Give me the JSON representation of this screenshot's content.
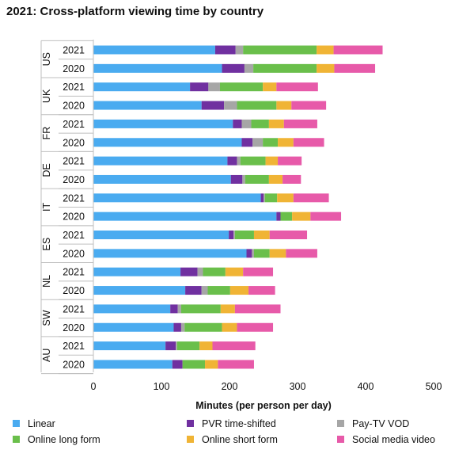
{
  "title": "2021: Cross-platform viewing time by country",
  "chart_data": {
    "type": "bar",
    "orientation": "horizontal",
    "stacked": true,
    "xlabel": "Minutes (per person per day)",
    "xlim": [
      0,
      500
    ],
    "xticks": [
      0,
      100,
      200,
      300,
      400,
      500
    ],
    "grid": false,
    "legend_position": "bottom",
    "groups": [
      {
        "country": "US",
        "years": [
          "2021",
          "2020"
        ]
      },
      {
        "country": "UK",
        "years": [
          "2021",
          "2020"
        ]
      },
      {
        "country": "FR",
        "years": [
          "2021",
          "2020"
        ]
      },
      {
        "country": "DE",
        "years": [
          "2021",
          "2020"
        ]
      },
      {
        "country": "IT",
        "years": [
          "2021",
          "2020"
        ]
      },
      {
        "country": "ES",
        "years": [
          "2021",
          "2020"
        ]
      },
      {
        "country": "NL",
        "years": [
          "2021",
          "2020"
        ]
      },
      {
        "country": "SW",
        "years": [
          "2021",
          "2020"
        ]
      },
      {
        "country": "AU",
        "years": [
          "2021",
          "2020"
        ]
      }
    ],
    "categories": [
      "US 2021",
      "US 2020",
      "UK 2021",
      "UK 2020",
      "FR 2021",
      "FR 2020",
      "DE 2021",
      "DE 2020",
      "IT 2021",
      "IT 2020",
      "ES 2021",
      "ES 2020",
      "NL 2021",
      "NL 2020",
      "SW 2021",
      "SW 2020",
      "AU 2021",
      "AU 2020"
    ],
    "series": [
      {
        "name": "Linear",
        "color": "#4aabf0",
        "values": [
          179,
          189,
          142,
          159,
          205,
          218,
          197,
          202,
          246,
          269,
          199,
          225,
          128,
          135,
          113,
          118,
          106,
          116
        ]
      },
      {
        "name": "PVR time-shifted",
        "color": "#7030a0",
        "values": [
          30,
          33,
          27,
          33,
          13,
          16,
          14,
          17,
          4,
          6,
          7,
          8,
          25,
          24,
          11,
          11,
          15,
          15
        ]
      },
      {
        "name": "Pay-TV VOD",
        "color": "#a6a6a6",
        "values": [
          11,
          13,
          17,
          19,
          14,
          15,
          5,
          4,
          2,
          0,
          2,
          3,
          8,
          9,
          5,
          5,
          2,
          0
        ]
      },
      {
        "name": "Online long form",
        "color": "#6abf4b",
        "values": [
          108,
          93,
          63,
          58,
          26,
          22,
          37,
          35,
          18,
          17,
          28,
          23,
          33,
          33,
          58,
          55,
          33,
          33
        ]
      },
      {
        "name": "Online short form",
        "color": "#f0b435",
        "values": [
          25,
          26,
          20,
          22,
          22,
          23,
          18,
          20,
          24,
          27,
          23,
          24,
          26,
          27,
          21,
          22,
          19,
          19
        ]
      },
      {
        "name": "Social media video",
        "color": "#e75aa9",
        "values": [
          72,
          60,
          61,
          51,
          49,
          45,
          35,
          27,
          52,
          45,
          55,
          46,
          44,
          39,
          67,
          53,
          63,
          53
        ]
      }
    ]
  }
}
